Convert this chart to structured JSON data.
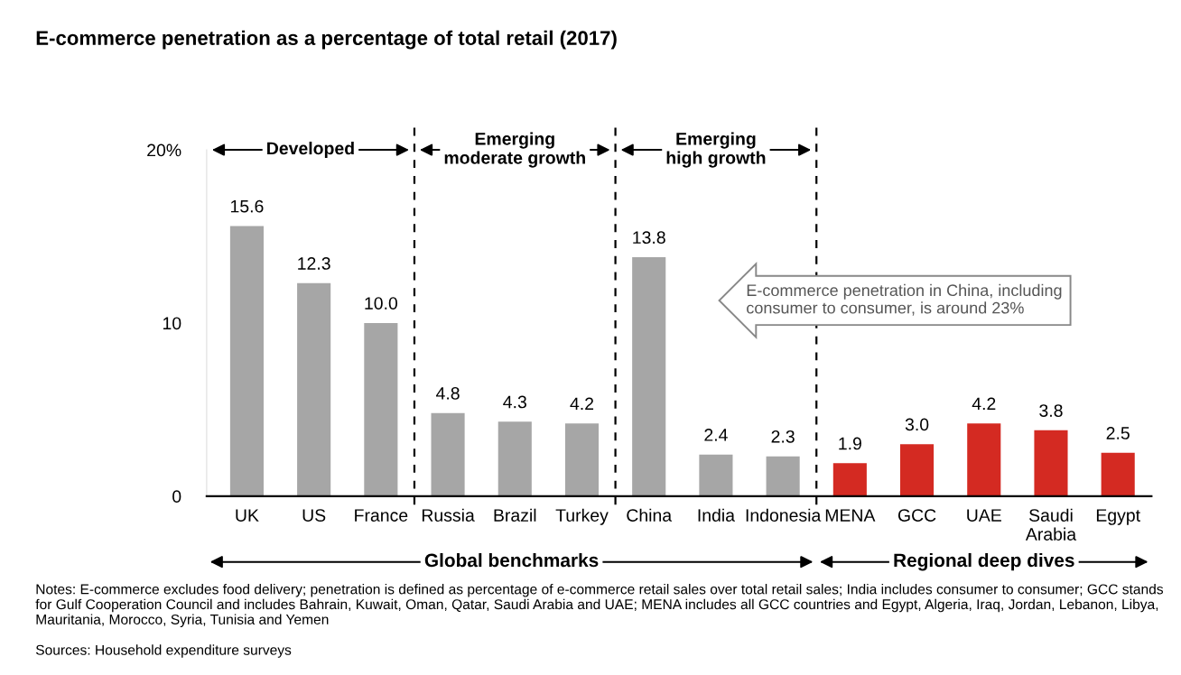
{
  "chart_data": {
    "type": "bar",
    "title": "E-commerce penetration as a percentage of total retail (2017)",
    "categories": [
      "UK",
      "US",
      "France",
      "Russia",
      "Brazil",
      "Turkey",
      "China",
      "India",
      "Indonesia",
      "MENA",
      "GCC",
      "UAE",
      "Saudi\nArabia",
      "Egypt"
    ],
    "values": [
      15.6,
      12.3,
      10.0,
      4.8,
      4.3,
      4.2,
      13.8,
      2.4,
      2.3,
      1.9,
      3.0,
      4.2,
      3.8,
      2.5
    ],
    "colors": [
      "#a6a6a6",
      "#a6a6a6",
      "#a6a6a6",
      "#a6a6a6",
      "#a6a6a6",
      "#a6a6a6",
      "#a6a6a6",
      "#a6a6a6",
      "#a6a6a6",
      "#d42a22",
      "#d42a22",
      "#d42a22",
      "#d42a22",
      "#d42a22"
    ],
    "value_labels": [
      "15.6",
      "12.3",
      "10.0",
      "4.8",
      "4.3",
      "4.2",
      "13.8",
      "2.4",
      "2.3",
      "1.9",
      "3.0",
      "4.2",
      "3.8",
      "2.5"
    ],
    "ylim": [
      0,
      20
    ],
    "yticks": [
      0,
      10,
      {
        "value": 20,
        "label": "20%"
      }
    ],
    "grid": false,
    "annotations": [
      "Developed",
      "Emerging\nmoderate growth",
      "Emerging\nhigh growth",
      "Global benchmarks",
      "Regional deep dives",
      "E-commerce penetration in China, including\nconsumer to consumer, is around 23%",
      "Notes: E-commerce excludes food delivery; penetration is defined as percentage of e-commerce retail sales over total retail sales; India includes consumer to consumer; GCC stands for Gulf Cooperation Council and includes Bahrain, Kuwait, Oman, Qatar, Saudi Arabia and UAE; MENA includes all GCC countries and Egypt, Algeria, Iraq, Jordan, Lebanon, Libya, Mauritania, Morocco, Syria, Tunisia and Yemen",
      "Sources: Household expenditure surveys"
    ]
  }
}
